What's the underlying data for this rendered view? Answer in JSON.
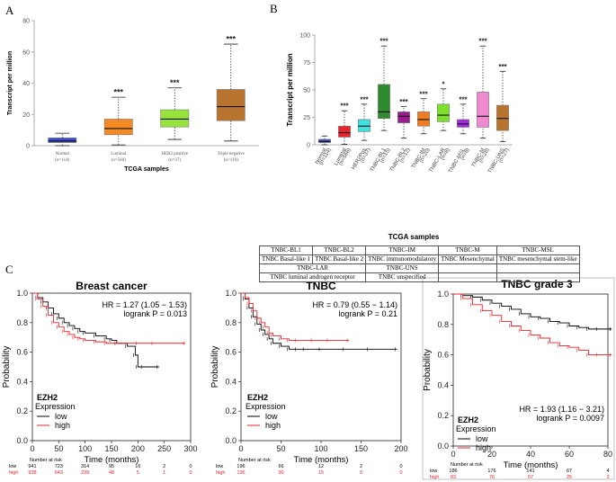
{
  "panel_labels": {
    "a": "A",
    "b": "B",
    "c": "C"
  },
  "abbrev_table": {
    "rows": [
      [
        {
          "text": "TNBC-BL1"
        },
        {
          "text": "TNBC-BL2"
        },
        {
          "text": "TNBC-IM"
        },
        {
          "text": "TNBC-M"
        },
        {
          "text": "TNBC-MSL"
        }
      ],
      [
        {
          "text": "TNBC Basal-like 1"
        },
        {
          "text": "TNBC Basal-like 2"
        },
        {
          "text": "TNBC immunomodulatory"
        },
        {
          "text": "TNBC Mesenchymal"
        },
        {
          "text": "TNBC mesenchymal stem-like"
        }
      ],
      [
        {
          "text": "TNBC-LAR",
          "span": 2
        },
        {
          "text": "TNBC-UNS"
        },
        {
          "text": ""
        },
        {
          "text": ""
        }
      ],
      [
        {
          "text": "TNBC luminal androgen receptor",
          "span": 2
        },
        {
          "text": "TNBC unspecified"
        },
        {
          "text": ""
        },
        {
          "text": ""
        }
      ]
    ]
  },
  "chart_data": [
    {
      "type": "box",
      "panel": "A",
      "title": "",
      "xlabel": "TCGA samples",
      "ylabel": "Transcript per million",
      "ylim": [
        0,
        80
      ],
      "yticks": [
        0,
        20,
        40,
        60,
        80
      ],
      "categories": [
        {
          "name": "Normal",
          "n": "(n=114)",
          "color": "#3f4fd1",
          "whisker_low": 0,
          "q1": 2,
          "median": 3,
          "q3": 5,
          "whisker_high": 8,
          "sig": ""
        },
        {
          "name": "Luminal",
          "n": "(n=566)",
          "color": "#f28a25",
          "whisker_low": 0.5,
          "q1": 7,
          "median": 11,
          "q3": 17,
          "whisker_high": 31,
          "sig": "***"
        },
        {
          "name": "HER2 positive",
          "n": "(n=37)",
          "color": "#98e23c",
          "whisker_low": 4,
          "q1": 12,
          "median": 17,
          "q3": 23,
          "whisker_high": 37,
          "sig": "***"
        },
        {
          "name": "Triple negative",
          "n": "(n=116)",
          "color": "#b8742f",
          "whisker_low": 3,
          "q1": 16,
          "median": 25,
          "q3": 36,
          "whisker_high": 65,
          "sig": "***"
        }
      ]
    },
    {
      "type": "box",
      "panel": "B",
      "title": "",
      "xlabel": "TCGA samples",
      "ylabel": "Transcript per million",
      "ylim": [
        0,
        100
      ],
      "yticks": [
        0,
        25,
        50,
        75,
        100
      ],
      "categories": [
        {
          "name": "Normal",
          "n": "(n=114)",
          "color": "#3f4fd1",
          "whisker_low": 0,
          "q1": 2,
          "median": 3,
          "q3": 5,
          "whisker_high": 8,
          "sig": ""
        },
        {
          "name": "Luminal",
          "n": "(n=566)",
          "color": "#e8232a",
          "whisker_low": 0.5,
          "q1": 7,
          "median": 11,
          "q3": 17,
          "whisker_high": 31,
          "sig": "***"
        },
        {
          "name": "HER2Pos",
          "n": "(n=37)",
          "color": "#3ee0e0",
          "whisker_low": 4,
          "q1": 12,
          "median": 17,
          "q3": 23,
          "whisker_high": 37,
          "sig": "***"
        },
        {
          "name": "TNBC-BL1",
          "n": "(n=15)",
          "color": "#2e8b2e",
          "whisker_low": 13,
          "q1": 24,
          "median": 30,
          "q3": 55,
          "whisker_high": 90,
          "sig": "***"
        },
        {
          "name": "TNBC-BL2",
          "n": "(n=12)",
          "color": "#9b1a8e",
          "whisker_low": 6,
          "q1": 20,
          "median": 26,
          "q3": 30,
          "whisker_high": 35,
          "sig": "***"
        },
        {
          "name": "TNBC-IM",
          "n": "(n=20)",
          "color": "#f07c22",
          "whisker_low": 10,
          "q1": 17,
          "median": 23,
          "q3": 30,
          "whisker_high": 42,
          "sig": "***"
        },
        {
          "name": "TNBC-LAR",
          "n": "(n=8)",
          "color": "#7de02c",
          "whisker_low": 13,
          "q1": 21,
          "median": 27,
          "q3": 37,
          "whisker_high": 51,
          "sig": "*"
        },
        {
          "name": "TNBC-MSL",
          "n": "(n=8)",
          "color": "#a02ae0",
          "whisker_low": 10,
          "q1": 16,
          "median": 19,
          "q3": 23,
          "whisker_high": 37,
          "sig": "***"
        },
        {
          "name": "TNBC-M",
          "n": "(n=28)",
          "color": "#f08ad0",
          "whisker_low": 6,
          "q1": 16,
          "median": 26,
          "q3": 48,
          "whisker_high": 90,
          "sig": "***"
        },
        {
          "name": "TNBC-UNS",
          "n": "(n=27)",
          "color": "#b8742f",
          "whisker_low": 3,
          "q1": 13,
          "median": 24,
          "q3": 36,
          "whisker_high": 67,
          "sig": "***"
        }
      ]
    },
    {
      "type": "line",
      "panel": "C-1",
      "title": "Breast cancer",
      "xlabel": "Time (months)",
      "ylabel": "Probability",
      "xlim": [
        0,
        300
      ],
      "ylim": [
        0,
        1
      ],
      "xticks": [
        0,
        50,
        100,
        150,
        200,
        250,
        300
      ],
      "yticks": [
        0.0,
        0.2,
        0.4,
        0.6,
        0.8,
        1.0
      ],
      "hr": "HR = 1.27 (1.05 − 1.53)",
      "logrank": "logrank P = 0.013",
      "legend_title": "EZH2",
      "legend_subtitle": "Expression",
      "series": [
        {
          "name": "low",
          "color": "#000000",
          "x": [
            0,
            10,
            20,
            30,
            40,
            50,
            60,
            70,
            80,
            90,
            100,
            120,
            140,
            150,
            160,
            180,
            195,
            200,
            210,
            240
          ],
          "y": [
            1.0,
            0.97,
            0.94,
            0.9,
            0.86,
            0.83,
            0.8,
            0.78,
            0.76,
            0.74,
            0.73,
            0.71,
            0.69,
            0.68,
            0.66,
            0.64,
            0.58,
            0.5,
            0.5,
            0.5
          ]
        },
        {
          "name": "high",
          "color": "#e8232a",
          "x": [
            0,
            10,
            20,
            30,
            40,
            50,
            60,
            70,
            80,
            90,
            100,
            120,
            140,
            160,
            200,
            230,
            290
          ],
          "y": [
            1.0,
            0.96,
            0.91,
            0.85,
            0.8,
            0.77,
            0.74,
            0.72,
            0.7,
            0.69,
            0.68,
            0.67,
            0.66,
            0.66,
            0.66,
            0.66,
            0.66
          ]
        }
      ],
      "risk_table": {
        "title": "Number at risk",
        "low": [
          "941",
          "723",
          "314",
          "95",
          "16",
          "2",
          "0"
        ],
        "high": [
          "938",
          "643",
          "239",
          "48",
          "5",
          "1",
          "0"
        ]
      }
    },
    {
      "type": "line",
      "panel": "C-2",
      "title": "TNBC",
      "xlabel": "Time (months)",
      "ylabel": "Probability",
      "xlim": [
        0,
        200
      ],
      "ylim": [
        0,
        1
      ],
      "xticks": [
        0,
        50,
        100,
        150,
        200
      ],
      "yticks": [
        0.0,
        0.2,
        0.4,
        0.6,
        0.8,
        1.0
      ],
      "hr": "HR = 0.79 (0.55 − 1.14)",
      "logrank": "logrank P = 0.21",
      "legend_title": "EZH2",
      "legend_subtitle": "Expression",
      "series": [
        {
          "name": "low",
          "color": "#000000",
          "x": [
            0,
            5,
            10,
            15,
            20,
            25,
            30,
            35,
            40,
            50,
            60,
            70,
            80,
            100,
            130,
            160,
            195
          ],
          "y": [
            1.0,
            0.96,
            0.9,
            0.84,
            0.79,
            0.75,
            0.72,
            0.69,
            0.66,
            0.64,
            0.62,
            0.62,
            0.62,
            0.62,
            0.62,
            0.62,
            0.62
          ]
        },
        {
          "name": "high",
          "color": "#e8232a",
          "x": [
            0,
            5,
            10,
            15,
            20,
            25,
            30,
            35,
            40,
            50,
            60,
            70,
            90,
            110,
            135
          ],
          "y": [
            1.0,
            0.97,
            0.93,
            0.88,
            0.83,
            0.8,
            0.77,
            0.73,
            0.71,
            0.69,
            0.68,
            0.68,
            0.68,
            0.68,
            0.68
          ]
        }
      ],
      "risk_table": {
        "title": "Number at risk",
        "low": [
          "196",
          "66",
          "12",
          "2",
          "0"
        ],
        "high": [
          "196",
          "90",
          "15",
          "0",
          "0"
        ]
      }
    },
    {
      "type": "line",
      "panel": "C-3",
      "title": "TNBC grade 3",
      "xlabel": "Time (months)",
      "ylabel": "Probability",
      "xlim": [
        0,
        80
      ],
      "ylim": [
        0,
        1
      ],
      "xticks": [
        0,
        20,
        40,
        60,
        80
      ],
      "yticks": [
        0.0,
        0.2,
        0.4,
        0.6,
        0.8,
        1.0
      ],
      "hr": "HR = 1.93 (1.16 − 3.21)",
      "logrank": "logrank P = 0.0097",
      "legend_title": "EZH2",
      "legend_subtitle": "Expression",
      "series": [
        {
          "name": "low",
          "color": "#000000",
          "x": [
            0,
            5,
            10,
            15,
            20,
            25,
            30,
            35,
            40,
            45,
            50,
            55,
            60,
            65,
            70,
            75,
            82
          ],
          "y": [
            1.0,
            0.99,
            0.98,
            0.96,
            0.94,
            0.92,
            0.9,
            0.87,
            0.85,
            0.84,
            0.82,
            0.81,
            0.79,
            0.78,
            0.77,
            0.77,
            0.77
          ]
        },
        {
          "name": "high",
          "color": "#e8232a",
          "x": [
            0,
            5,
            10,
            15,
            20,
            25,
            30,
            35,
            40,
            45,
            50,
            55,
            60,
            65,
            70,
            75,
            82
          ],
          "y": [
            1.0,
            0.97,
            0.93,
            0.89,
            0.86,
            0.82,
            0.79,
            0.76,
            0.73,
            0.71,
            0.68,
            0.66,
            0.65,
            0.63,
            0.6,
            0.6,
            0.6
          ]
        }
      ],
      "risk_table": {
        "title": "Number at risk",
        "low": [
          "186",
          "176",
          "141",
          "67",
          "4"
        ],
        "high": [
          "83",
          "76",
          "57",
          "25",
          "3"
        ]
      }
    }
  ]
}
